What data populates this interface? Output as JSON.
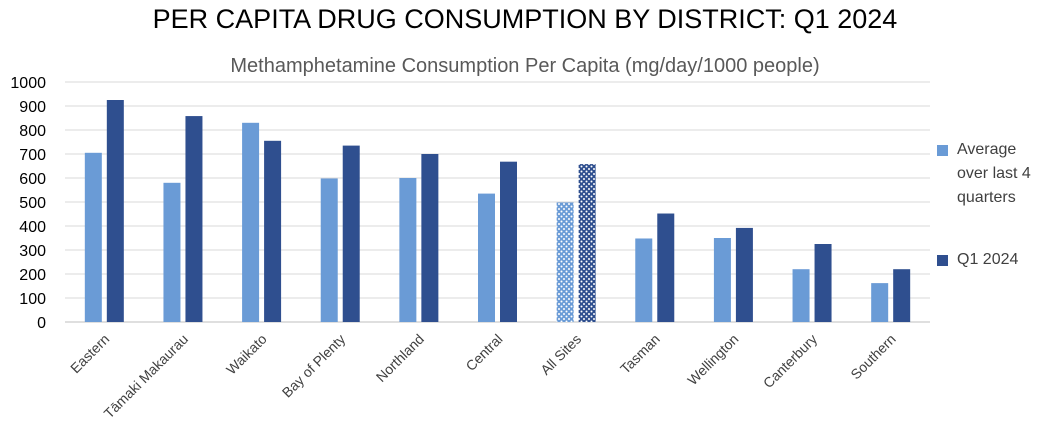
{
  "chart_data": {
    "type": "bar",
    "title": "PER CAPITA DRUG CONSUMPTION BY DISTRICT: Q1 2024",
    "subtitle": "Methamphetamine Consumption Per Capita (mg/day/1000 people)",
    "xlabel": "",
    "ylabel": "",
    "ylim": [
      0,
      1000
    ],
    "yticks": [
      0,
      100,
      200,
      300,
      400,
      500,
      600,
      700,
      800,
      900,
      1000
    ],
    "grid": true,
    "legend_position": "right",
    "categories": [
      "Eastern",
      "Tāmaki Makaurau",
      "Waikato",
      "Bay of Plenty",
      "Northland",
      "Central",
      "All Sites",
      "Tasman",
      "Wellington",
      "Canterbury",
      "Southern"
    ],
    "highlight_category": "All Sites",
    "series": [
      {
        "name": "Average over last 4 quarters",
        "color": "#6a9bd6",
        "values": [
          705,
          580,
          830,
          598,
          600,
          535,
          498,
          348,
          350,
          220,
          162
        ]
      },
      {
        "name": "Q1 2024",
        "color": "#2f4f8f",
        "values": [
          925,
          858,
          755,
          735,
          700,
          668,
          658,
          452,
          392,
          325,
          220
        ]
      }
    ]
  }
}
